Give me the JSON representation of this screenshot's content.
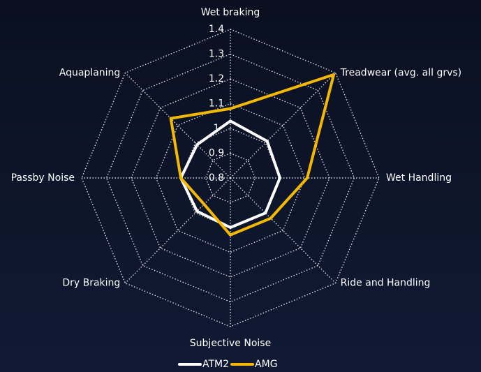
{
  "chart_data": {
    "type": "radar",
    "categories": [
      "Wet braking",
      "Treadwear (avg. all grvs)",
      "Wet Handling",
      "Ride and Handling",
      "Subjective Noise",
      "Dry Braking",
      "Passby Noise",
      "Aquaplaning"
    ],
    "series": [
      {
        "name": "ATM2",
        "color": "#ffffff",
        "values": [
          1.03,
          1.01,
          1.0,
          1.0,
          1.0,
          0.99,
          1.0,
          0.99
        ]
      },
      {
        "name": "AMG",
        "color": "#f5b800",
        "values": [
          1.08,
          1.39,
          1.11,
          1.03,
          1.03,
          0.95,
          1.0,
          1.14
        ]
      }
    ],
    "ylim": [
      0.8,
      1.4
    ],
    "yticks": [
      0.8,
      0.9,
      1,
      1.1,
      1.2,
      1.3,
      1.4
    ],
    "grid": true,
    "legend": "bottom"
  }
}
